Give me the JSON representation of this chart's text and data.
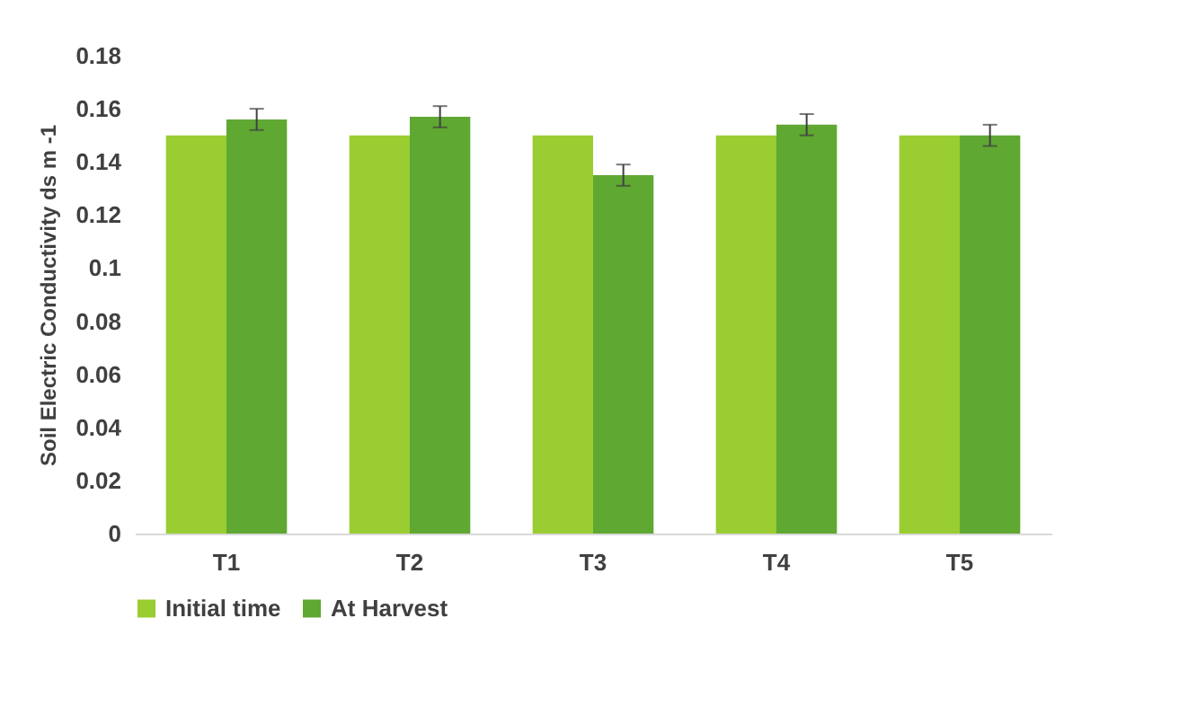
{
  "chart_data": {
    "type": "bar",
    "ylabel": "Soil Electric Conductivity  ds m -1",
    "categories": [
      "T1",
      "T2",
      "T3",
      "T4",
      "T5"
    ],
    "series": [
      {
        "name": "Initial time",
        "color": "#9acd32",
        "values": [
          0.15,
          0.15,
          0.15,
          0.15,
          0.15
        ]
      },
      {
        "name": "At Harvest",
        "color": "#5fa832",
        "values": [
          0.156,
          0.157,
          0.135,
          0.154,
          0.15
        ],
        "errors": [
          0.004,
          0.004,
          0.004,
          0.004,
          0.004
        ]
      }
    ],
    "ylim": [
      0,
      0.18
    ],
    "yticks": [
      0,
      0.02,
      0.04,
      0.06,
      0.08,
      0.1,
      0.12,
      0.14,
      0.16,
      0.18
    ],
    "grid": false,
    "legend": "bottom"
  }
}
